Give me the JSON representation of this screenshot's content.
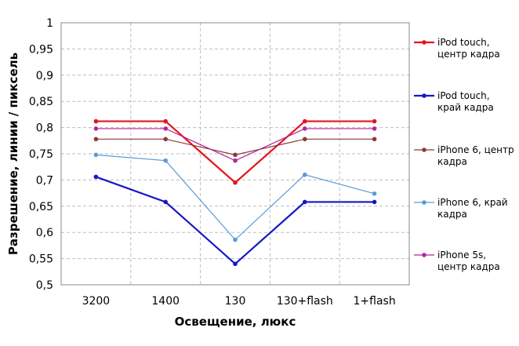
{
  "chart_data": {
    "type": "line",
    "title": "",
    "xlabel": "Освещение,  люкс",
    "ylabel": "Разрешение,  линии  / пиксель",
    "categories": [
      "3200",
      "1400",
      "130",
      "130+flash",
      "1+flash"
    ],
    "ylim": [
      0.5,
      1.0
    ],
    "yticks": [
      "0,5",
      "0,55",
      "0,6",
      "0,65",
      "0,7",
      "0,75",
      "0,8",
      "0,85",
      "0,9",
      "0,95",
      "1"
    ],
    "grid": true,
    "legend_position": "right",
    "series": [
      {
        "name": "iPod touch, центр кадра",
        "legend_lines": [
          "iPod touch,",
          "центр кадра"
        ],
        "color": "#e3161b",
        "values": [
          0.812,
          0.812,
          0.695,
          0.812,
          0.812
        ]
      },
      {
        "name": "iPod touch, край кадра",
        "legend_lines": [
          "iPod touch,",
          "край кадра"
        ],
        "color": "#1616c8",
        "values": [
          0.706,
          0.658,
          0.54,
          0.658,
          0.658
        ]
      },
      {
        "name": "iPhone 6, центр кадра",
        "legend_lines": [
          "iPhone 6, центр",
          "кадра"
        ],
        "color": "#8b3a3a",
        "values": [
          0.778,
          0.778,
          0.748,
          0.778,
          0.778
        ]
      },
      {
        "name": "iPhone 6, край кадра",
        "legend_lines": [
          "iPhone 6, край",
          "кадра"
        ],
        "color": "#5b9bd5",
        "values": [
          0.748,
          0.737,
          0.586,
          0.71,
          0.674
        ]
      },
      {
        "name": "iPhone 5s, центр кадра",
        "legend_lines": [
          "iPhone 5s,",
          "центр кадра"
        ],
        "color": "#b5259a",
        "values": [
          0.798,
          0.798,
          0.737,
          0.798,
          0.798
        ]
      }
    ]
  }
}
